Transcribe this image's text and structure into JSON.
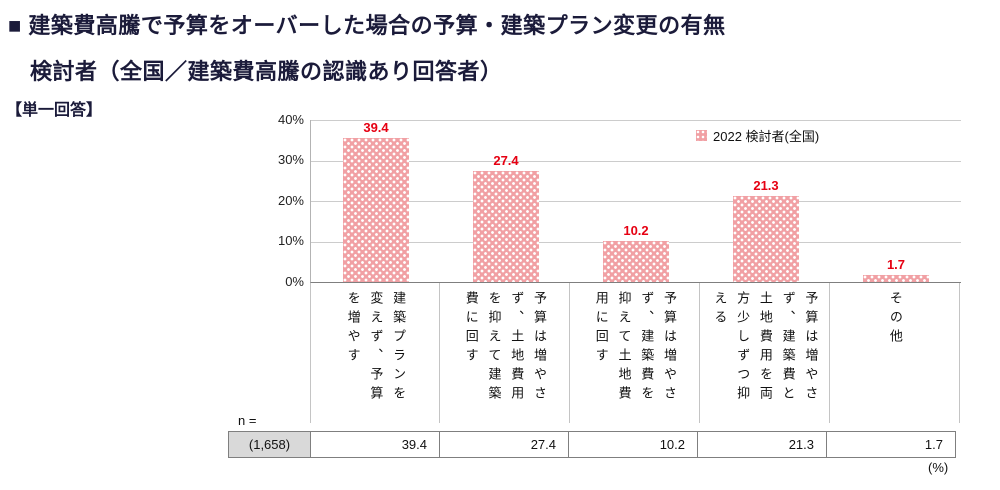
{
  "title": {
    "line1": "■ 建築費高騰で予算をオーバーした場合の予算・建築プラン変更の有無",
    "line2": "検討者（全国／建築費高騰の認識あり回答者）"
  },
  "answer_type": "【単一回答】",
  "legend": {
    "label": "2022 検討者(全国)"
  },
  "y_axis": {
    "ticks": [
      "40%",
      "30%",
      "20%",
      "10%",
      "0%"
    ]
  },
  "chart_data": {
    "type": "bar",
    "title": "建築費高騰で予算をオーバーした場合の予算・建築プラン変更の有無",
    "categories": [
      "建築プランを変えず、予算を増やす",
      "予算は増やさず、土地費用を抑えて建築費に回す",
      "予算は増やさず、建築費を抑えて土地費用に回す",
      "予算は増やさず、建築費と土地費用を両方少しずつ抑える",
      "その他"
    ],
    "series": [
      {
        "name": "2022 検討者(全国)",
        "values": [
          39.4,
          27.4,
          10.2,
          21.3,
          1.7
        ]
      }
    ],
    "xlabel": "",
    "ylabel": "%",
    "ylim": [
      0,
      40
    ],
    "grid": true,
    "legend_position": "top-right-inside"
  },
  "value_labels": [
    "39.4",
    "27.4",
    "10.2",
    "21.3",
    "1.7"
  ],
  "table": {
    "n_label": "n =",
    "n_value": "(1,658)",
    "values": [
      "39.4",
      "27.4",
      "10.2",
      "21.3",
      "1.7"
    ]
  },
  "unit_note": "(%)",
  "colors": {
    "bar": "#f1a0a4",
    "value_label": "#e60012",
    "title": "#1b1b3a",
    "n_cell_bg": "#d9d9d9"
  }
}
